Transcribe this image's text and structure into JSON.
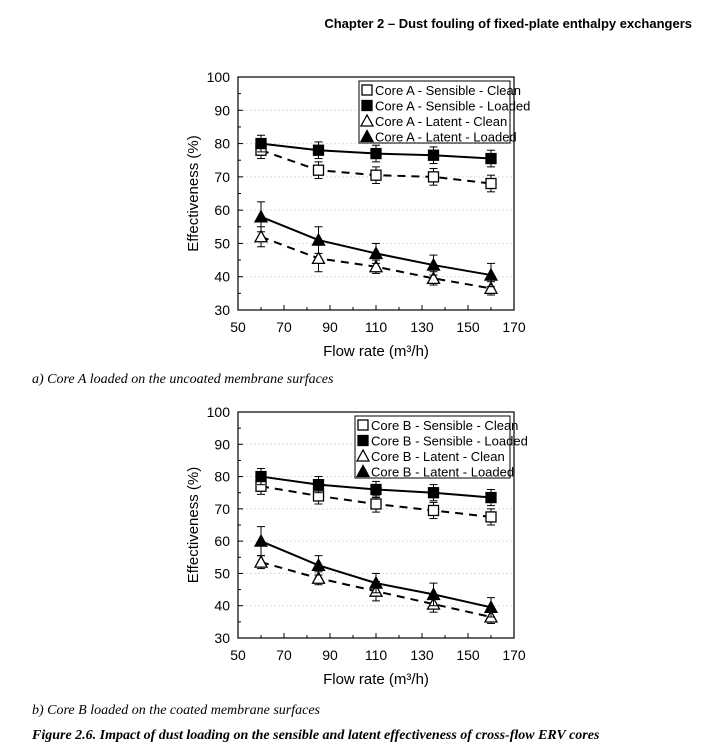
{
  "header": "Chapter 2 – Dust fouling of fixed-plate enthalpy exchangers",
  "figure_caption": "Figure 2.6. Impact of dust loading on the sensible and latent effectiveness of cross-flow ERV cores",
  "chart_data": [
    {
      "type": "line",
      "subcaption": "a) Core A loaded on the uncoated membrane surfaces",
      "xlabel": "Flow rate (m³/h)",
      "ylabel": "Effectiveness (%)",
      "xlim": [
        50,
        170
      ],
      "ylim": [
        30,
        100
      ],
      "xticks": [
        50,
        70,
        90,
        110,
        130,
        150,
        170
      ],
      "yticks": [
        30,
        40,
        50,
        60,
        70,
        80,
        90,
        100
      ],
      "grid": "horizontal dotted",
      "legend_position": "top-right",
      "x": [
        60,
        85,
        110,
        135,
        160
      ],
      "series": [
        {
          "name": "Core A - Sensible - Clean",
          "marker": "square-open",
          "line": "dashed",
          "values": [
            78,
            72,
            70.5,
            70,
            68
          ],
          "error": [
            2.5,
            2.5,
            2.5,
            2.5,
            2.5
          ]
        },
        {
          "name": "Core A - Sensible - Loaded",
          "marker": "square-filled",
          "line": "solid",
          "values": [
            80,
            78,
            77,
            76.5,
            75.5
          ],
          "error": [
            2.5,
            2.5,
            2.5,
            2.5,
            2.5
          ]
        },
        {
          "name": "Core A - Latent - Clean",
          "marker": "triangle-open",
          "line": "dashed",
          "values": [
            52,
            45.5,
            43,
            39.5,
            36.5
          ],
          "error": [
            3,
            4,
            2,
            2,
            2
          ]
        },
        {
          "name": "Core A - Latent - Loaded",
          "marker": "triangle-filled",
          "line": "solid",
          "values": [
            58,
            51,
            47,
            43.5,
            40.5
          ],
          "error": [
            4.5,
            4,
            3,
            3,
            3.5
          ]
        }
      ]
    },
    {
      "type": "line",
      "subcaption": "b) Core B loaded on the coated membrane surfaces",
      "xlabel": "Flow rate (m³/h)",
      "ylabel": "Effectiveness (%)",
      "xlim": [
        50,
        170
      ],
      "ylim": [
        30,
        100
      ],
      "xticks": [
        50,
        70,
        90,
        110,
        130,
        150,
        170
      ],
      "yticks": [
        30,
        40,
        50,
        60,
        70,
        80,
        90,
        100
      ],
      "grid": "horizontal dotted",
      "legend_position": "top-right",
      "x": [
        60,
        85,
        110,
        135,
        160
      ],
      "series": [
        {
          "name": "Core B - Sensible - Clean",
          "marker": "square-open",
          "line": "dashed",
          "values": [
            77,
            74,
            71.5,
            69.5,
            67.5
          ],
          "error": [
            2.5,
            2.5,
            2.5,
            2.5,
            2.5
          ]
        },
        {
          "name": "Core B - Sensible - Loaded",
          "marker": "square-filled",
          "line": "solid",
          "values": [
            80,
            77.5,
            76,
            75,
            73.5
          ],
          "error": [
            2.5,
            2.5,
            2.5,
            2.5,
            2.5
          ]
        },
        {
          "name": "Core B - Latent - Clean",
          "marker": "triangle-open",
          "line": "dashed",
          "values": [
            53.5,
            48.5,
            44.5,
            40.5,
            36.5
          ],
          "error": [
            2,
            2,
            3,
            2.5,
            2
          ]
        },
        {
          "name": "Core B - Latent - Loaded",
          "marker": "triangle-filled",
          "line": "solid",
          "values": [
            60,
            52.5,
            47,
            43.5,
            39.5
          ],
          "error": [
            4.5,
            3,
            3,
            3.5,
            3
          ]
        }
      ]
    }
  ]
}
